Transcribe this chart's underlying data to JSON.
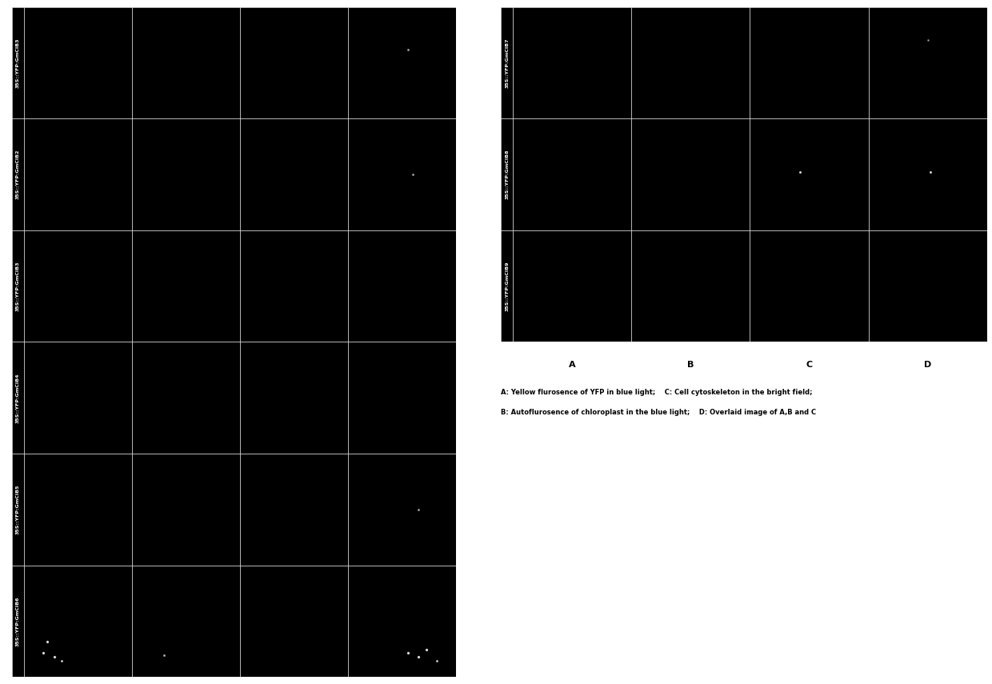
{
  "left_panel": {
    "rows": 6,
    "cols": 4,
    "row_labels": [
      "35S::YFP:GmCIB3",
      "35S::YFP:GmCIB2",
      "35S::YFP:GmCIB3",
      "35S::YFP:GmCIB4",
      "35S::YFP:GmCIB5",
      "35S::YFP:GmCIB6"
    ],
    "bg_color": "#000000",
    "grid_color": "#ffffff",
    "label_fontsize": 4.5
  },
  "right_panel": {
    "rows": 3,
    "cols": 4,
    "row_labels": [
      "35S::YFP:GmCIB7",
      "35S::YFP:GmCIB8",
      "35S::YFP:GmCIB9"
    ],
    "col_labels": [
      "A",
      "B",
      "C",
      "D"
    ],
    "bg_color": "#000000",
    "grid_color": "#ffffff",
    "col_label_fontsize": 8,
    "row_label_fontsize": 4.5,
    "caption_line1": "A: Yellow flurosence of YFP in blue light;    C: Cell cytoskeleton in the bright field;",
    "caption_line2": "B: Autoflurosence of chloroplast in the blue light;    D: Overlaid image of A,B and C",
    "caption_fontsize": 6.0
  },
  "figure_bg": "#ffffff"
}
